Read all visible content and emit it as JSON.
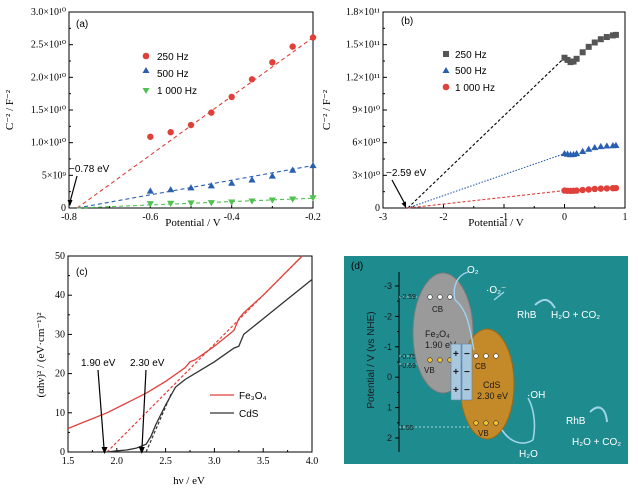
{
  "chart_data": [
    {
      "type": "scatter",
      "panel_label": "(a)",
      "xlabel": "Potential / V",
      "ylabel": "C⁻² / F⁻²",
      "xlim": [
        -0.8,
        -0.2
      ],
      "ylim": [
        0,
        30000000000
      ],
      "xticks": [
        "-0.8",
        "-0.6",
        "-0.4",
        "-0.2"
      ],
      "yticks": [
        "0",
        "5×10⁹",
        "1.0×10¹⁰",
        "1.5×10¹⁰",
        "2.0×10¹⁰",
        "2.5×10¹⁰",
        "3.0×10¹⁰"
      ],
      "legend_position": "top-left",
      "annotation": "−0.78 eV",
      "series": [
        {
          "name": "250 Hz",
          "color": "#e0403a",
          "marker": "circle",
          "x": [
            -0.6,
            -0.55,
            -0.5,
            -0.45,
            -0.4,
            -0.35,
            -0.3,
            -0.25,
            -0.2
          ],
          "y": [
            10900000000,
            11600000000,
            12700000000,
            14600000000,
            17000000000,
            19700000000,
            22300000000,
            24700000000,
            26100000000
          ],
          "fit": [
            [
              -0.78,
              0
            ],
            [
              -0.2,
              26100000000
            ]
          ]
        },
        {
          "name": "500 Hz",
          "color": "#2a5fb0",
          "marker": "triangle-up",
          "x": [
            -0.6,
            -0.55,
            -0.5,
            -0.45,
            -0.4,
            -0.35,
            -0.3,
            -0.25,
            -0.2
          ],
          "y": [
            2600000000,
            2800000000,
            3100000000,
            3400000000,
            3800000000,
            4300000000,
            4900000000,
            5800000000,
            6500000000
          ],
          "fit": [
            [
              -0.78,
              0
            ],
            [
              -0.2,
              6500000000
            ]
          ]
        },
        {
          "name": "1 000 Hz",
          "color": "#4fc24f",
          "marker": "triangle-down",
          "x": [
            -0.6,
            -0.55,
            -0.5,
            -0.45,
            -0.4,
            -0.35,
            -0.3,
            -0.25,
            -0.2
          ],
          "y": [
            600000000,
            650000000,
            700000000,
            750000000,
            850000000,
            1000000000,
            1150000000,
            1300000000,
            1500000000
          ],
          "fit": [
            [
              -0.78,
              0
            ],
            [
              -0.2,
              1500000000
            ]
          ]
        }
      ]
    },
    {
      "type": "scatter",
      "panel_label": "(b)",
      "xlabel": "Potential / V",
      "ylabel": "C⁻² / F⁻²",
      "xlim": [
        -3,
        1
      ],
      "ylim": [
        0,
        180000000000
      ],
      "xticks": [
        "-3",
        "-2",
        "-1",
        "0",
        "1"
      ],
      "yticks": [
        "0",
        "3×10¹⁰",
        "6×10¹⁰",
        "9×10¹⁰",
        "1.2×10¹¹",
        "1.5×10¹¹",
        "1.8×10¹¹"
      ],
      "legend_position": "top-right",
      "annotation": "−2.59 eV",
      "series": [
        {
          "name": "250 Hz",
          "color": "#555555",
          "marker": "square",
          "x": [
            0.0,
            0.05,
            0.1,
            0.15,
            0.2,
            0.3,
            0.4,
            0.5,
            0.6,
            0.7,
            0.8,
            0.85
          ],
          "y": [
            138000000000,
            136000000000,
            134000000000,
            134500000000,
            137000000000,
            143000000000,
            148000000000,
            152000000000,
            155000000000,
            157000000000,
            158500000000,
            159000000000
          ],
          "fit": [
            [
              -2.59,
              0
            ],
            [
              0.0,
              138000000000
            ]
          ],
          "fit_color": "#000000"
        },
        {
          "name": "500 Hz",
          "color": "#2a5fb0",
          "marker": "triangle-up",
          "x": [
            0.0,
            0.05,
            0.1,
            0.15,
            0.2,
            0.3,
            0.4,
            0.5,
            0.6,
            0.7,
            0.8,
            0.85
          ],
          "y": [
            50000000000,
            49500000000,
            49000000000,
            49200000000,
            50000000000,
            52000000000,
            54000000000,
            55500000000,
            56500000000,
            57000000000,
            57300000000,
            57500000000
          ],
          "fit": [
            [
              -2.59,
              0
            ],
            [
              0.0,
              50000000000
            ]
          ],
          "fit_color": "#2a5fb0"
        },
        {
          "name": "1 000 Hz",
          "color": "#e0403a",
          "marker": "circle",
          "x": [
            0.0,
            0.05,
            0.1,
            0.15,
            0.2,
            0.3,
            0.4,
            0.5,
            0.6,
            0.7,
            0.8,
            0.85
          ],
          "y": [
            16000000000,
            15800000000,
            15700000000,
            15800000000,
            16000000000,
            16500000000,
            17000000000,
            17500000000,
            17800000000,
            18000000000,
            18200000000,
            18300000000
          ],
          "fit": [
            [
              -2.59,
              0
            ],
            [
              0.0,
              16000000000
            ]
          ],
          "fit_color": "#e0403a"
        }
      ]
    },
    {
      "type": "line",
      "panel_label": "(c)",
      "xlabel": "hν / eV",
      "ylabel": "(αhν)² / (eV·cm⁻¹)²",
      "xlim": [
        1.5,
        4.0
      ],
      "ylim": [
        0,
        50
      ],
      "xticks": [
        "1.5",
        "2.0",
        "2.5",
        "3.0",
        "3.5",
        "4.0"
      ],
      "yticks": [
        "0",
        "10",
        "20",
        "30",
        "40",
        "50"
      ],
      "legend_position": "bottom-right",
      "annotations": [
        "1.90 eV",
        "2.30 eV"
      ],
      "series": [
        {
          "name": "Fe₃O₄",
          "color": "#e0403a",
          "x": [
            1.5,
            1.7,
            1.9,
            2.1,
            2.3,
            2.5,
            2.7,
            2.75,
            2.8,
            3.0,
            3.2,
            3.25,
            3.3,
            3.5,
            3.7,
            3.9
          ],
          "y": [
            6,
            8,
            10,
            12.5,
            15,
            18,
            21.5,
            23,
            23.5,
            27,
            31,
            34,
            35.5,
            40,
            45,
            50
          ],
          "tangent": [
            [
              1.9,
              0
            ],
            [
              3.9,
              50
            ]
          ]
        },
        {
          "name": "CdS",
          "color": "#333333",
          "x": [
            1.9,
            2.0,
            2.1,
            2.2,
            2.3,
            2.35,
            2.4,
            2.5,
            2.6,
            2.7,
            2.8,
            3.0,
            3.2,
            3.25,
            3.3,
            3.5,
            3.7,
            3.9,
            4.0
          ],
          "y": [
            0,
            0.3,
            0.5,
            1,
            2,
            4,
            7,
            12,
            16.5,
            18.5,
            20,
            23,
            26.5,
            27,
            30,
            34,
            38,
            42,
            44
          ],
          "tangent": [
            [
              2.3,
              0
            ],
            [
              2.56,
              15
            ]
          ]
        }
      ]
    }
  ],
  "diagram": {
    "panel_label": "(d)",
    "ylabel": "Potential / V (vs NHE)",
    "yticks": [
      "-3",
      "-2",
      "-1",
      "0",
      "1",
      "2"
    ],
    "level_labels": [
      "-2.59",
      "-0.75",
      "-0.69",
      "1.55"
    ],
    "fe3o4": {
      "name": "Fe₃O₄",
      "gap": "1.90 eV",
      "cb": "CB",
      "vb": "VB"
    },
    "cds": {
      "name": "CdS",
      "gap": "2.30 eV",
      "cb": "CB",
      "vb": "VB"
    },
    "species": {
      "o2": "O₂",
      "superoxide": "·O₂⁻",
      "rhb_1": "RhB",
      "products_1": "H₂O + CO₂",
      "oh": "·OH",
      "rhb_2": "RhB",
      "products_2": "H₂O + CO₂",
      "h2o": "H₂O"
    },
    "charges": {
      "plus": "+",
      "minus": "−"
    },
    "colors": {
      "background": "#1e8b8f",
      "fe3o4": "#9a9a9a",
      "cds": "#c48a2a"
    }
  }
}
